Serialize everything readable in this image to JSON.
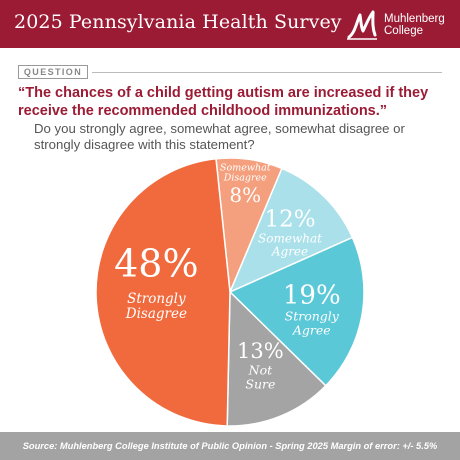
{
  "header": {
    "title": "2025 Pennsylvania Health Survey",
    "logo_line1": "Muhlenberg",
    "logo_line2": "College"
  },
  "question": {
    "tag": "QUESTION",
    "headline": "“The chances of a child getting autism are increased if they receive the recommended childhood immunizations.”",
    "subquestion": "Do you strongly agree, somewhat agree, somewhat disagree or strongly disagree with this statement?"
  },
  "chart_data": {
    "type": "pie",
    "title": "",
    "slices": [
      {
        "label": "Somewhat Disagree",
        "value": 8,
        "display": "8%",
        "color": "#f4a07e"
      },
      {
        "label": "Somewhat Agree",
        "value": 12,
        "display": "12%",
        "color": "#a9e0ea"
      },
      {
        "label": "Strongly Agree",
        "value": 19,
        "display": "19%",
        "color": "#5bc8d8"
      },
      {
        "label": "Not Sure",
        "value": 13,
        "display": "13%",
        "color": "#a4a4a4"
      },
      {
        "label": "Strongly Disagree",
        "value": 48,
        "display": "48%",
        "color": "#f06a3e"
      }
    ]
  },
  "footer": {
    "source": "Source: Muhlenberg College Institute of Public Opinion - Spring 2025 Margin of error: +/- 5.5%"
  }
}
